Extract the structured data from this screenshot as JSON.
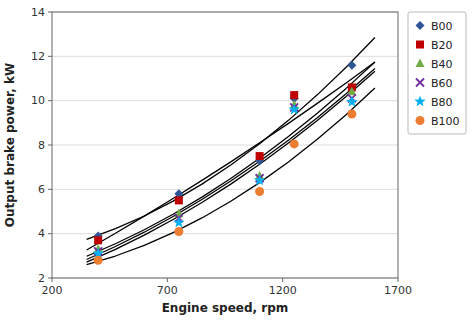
{
  "chart_data": {
    "type": "scatter",
    "xlabel": "Engine speed, rpm",
    "ylabel": "Output brake power, kW",
    "xlim": [
      200,
      1700
    ],
    "ylim": [
      2,
      14
    ],
    "xticks": [
      200,
      700,
      1200,
      1700
    ],
    "yticks": [
      2,
      4,
      6,
      8,
      10,
      12,
      14
    ],
    "grid": "y",
    "legend": "right",
    "fit": {
      "type": "line",
      "color": "#000000",
      "x": [
        350,
        475,
        600,
        725,
        850,
        975,
        1100,
        1225,
        1350,
        1475,
        1600
      ]
    },
    "series": [
      {
        "name": "B00",
        "color": "#2F5597",
        "marker": "diamond",
        "x": [
          400,
          750,
          1100,
          1250,
          1500
        ],
        "values": [
          3.9,
          5.8,
          7.3,
          10.1,
          11.6
        ],
        "fit_values": [
          3.746,
          4.224,
          4.798,
          5.468,
          6.235,
          7.097,
          8.056,
          9.111,
          10.262,
          11.509,
          12.853
        ]
      },
      {
        "name": "B20",
        "color": "#C00000",
        "marker": "square",
        "x": [
          400,
          750,
          1100,
          1250,
          1500
        ],
        "values": [
          3.7,
          5.5,
          7.5,
          10.25,
          10.6
        ],
        "fit_values": [
          3.263,
          4.017,
          4.791,
          5.586,
          6.402,
          7.24,
          8.098,
          8.977,
          9.878,
          10.799,
          11.742
        ]
      },
      {
        "name": "B40",
        "color": "#70AD47",
        "marker": "triangle",
        "x": [
          400,
          750,
          1100,
          1250,
          1500
        ],
        "values": [
          3.3,
          4.9,
          6.6,
          9.8,
          10.4
        ],
        "fit_values": [
          2.981,
          3.544,
          4.176,
          4.878,
          5.649,
          6.491,
          7.402,
          8.383,
          9.434,
          10.554,
          11.744
        ]
      },
      {
        "name": "B60",
        "color": "#7030A0",
        "marker": "x",
        "x": [
          400,
          750,
          1100,
          1250,
          1500
        ],
        "values": [
          3.2,
          4.7,
          6.5,
          9.7,
          10.1
        ],
        "fit_values": [
          2.835,
          3.42,
          4.066,
          4.773,
          5.542,
          6.373,
          7.265,
          8.219,
          9.234,
          10.311,
          11.449
        ]
      },
      {
        "name": "B80",
        "color": "#00B0F0",
        "marker": "star",
        "x": [
          400,
          750,
          1100,
          1250,
          1500
        ],
        "values": [
          3.1,
          4.5,
          6.4,
          9.6,
          9.95
        ],
        "fit_values": [
          2.714,
          3.293,
          3.934,
          4.638,
          5.406,
          6.236,
          7.129,
          8.086,
          9.105,
          10.187,
          11.332
        ]
      },
      {
        "name": "B100",
        "color": "#ED7D31",
        "marker": "circle",
        "x": [
          400,
          750,
          1100,
          1250,
          1500
        ],
        "values": [
          2.8,
          4.1,
          5.9,
          8.05,
          9.4
        ],
        "fit_values": [
          2.599,
          2.992,
          3.474,
          4.047,
          4.709,
          5.461,
          6.302,
          7.234,
          8.255,
          9.366,
          10.567
        ]
      }
    ]
  }
}
